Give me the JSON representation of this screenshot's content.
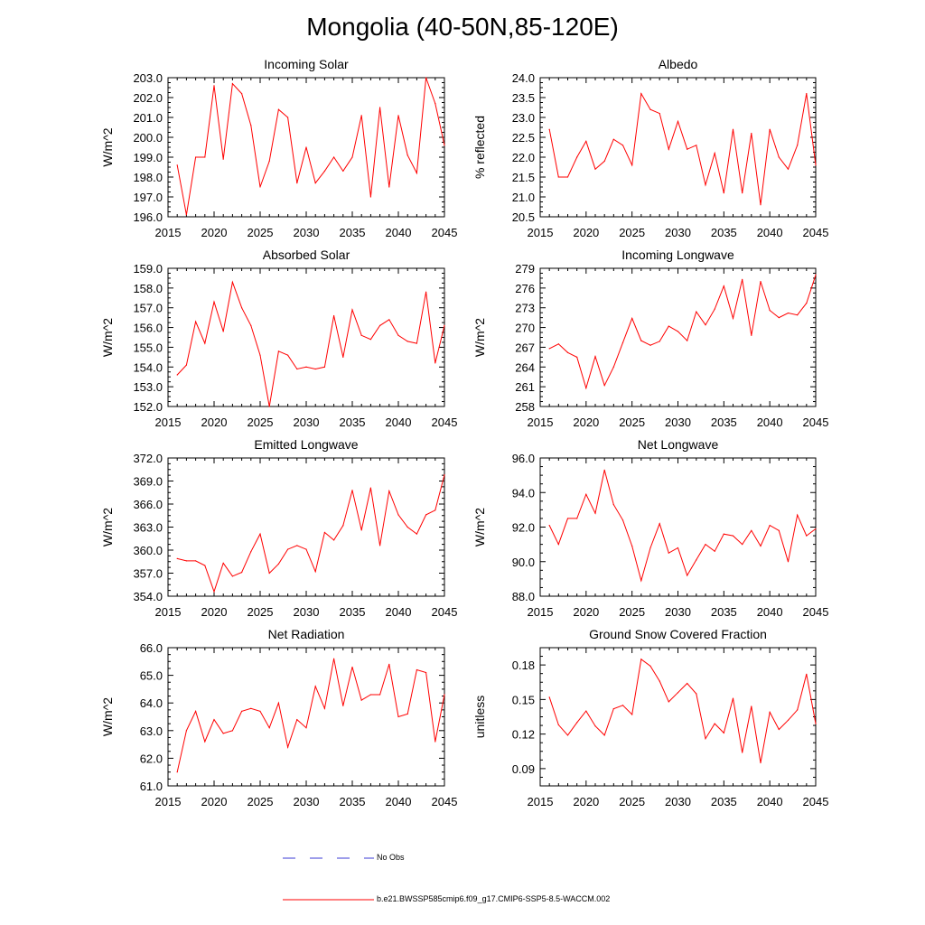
{
  "title": "Mongolia (40-50N,85-120E)",
  "legend": {
    "obs_label": "No Obs",
    "obs_color": "#3b3bd6",
    "model_label": "b.e21.BWSSP585cmip6.f09_g17.CMIP6-SSP5-8.5-WACCM.002",
    "model_color": "#ff0000"
  },
  "chart_data": [
    {
      "type": "line",
      "title": "Incoming Solar",
      "xlabel": "",
      "ylabel": "W/m^2",
      "xlim": [
        2015,
        2045
      ],
      "ylim": [
        196.0,
        203.0
      ],
      "xticks": [
        2015,
        2020,
        2025,
        2030,
        2035,
        2040,
        2045
      ],
      "yticks": [
        "196.0",
        "197.0",
        "198.0",
        "199.0",
        "200.0",
        "201.0",
        "202.0",
        "203.0"
      ],
      "x": [
        2016,
        2017,
        2018,
        2019,
        2020,
        2021,
        2022,
        2023,
        2024,
        2025,
        2026,
        2027,
        2028,
        2029,
        2030,
        2031,
        2032,
        2033,
        2034,
        2035,
        2036,
        2037,
        2038,
        2039,
        2040,
        2041,
        2042,
        2043,
        2044,
        2045
      ],
      "values": [
        198.6,
        196.1,
        199.0,
        199.0,
        202.6,
        198.9,
        202.7,
        202.2,
        200.6,
        197.5,
        198.8,
        201.4,
        201.0,
        197.7,
        199.5,
        197.7,
        198.3,
        199.0,
        198.3,
        199.0,
        201.1,
        197.0,
        201.5,
        197.5,
        201.1,
        199.1,
        198.2,
        203.0,
        201.7,
        199.6
      ]
    },
    {
      "type": "line",
      "title": "Albedo",
      "xlabel": "",
      "ylabel": "% reflected",
      "xlim": [
        2015,
        2045
      ],
      "ylim": [
        20.5,
        24.0
      ],
      "xticks": [
        2015,
        2020,
        2025,
        2030,
        2035,
        2040,
        2045
      ],
      "yticks": [
        "20.5",
        "21.0",
        "21.5",
        "22.0",
        "22.5",
        "23.0",
        "23.5",
        "24.0"
      ],
      "x": [
        2016,
        2017,
        2018,
        2019,
        2020,
        2021,
        2022,
        2023,
        2024,
        2025,
        2026,
        2027,
        2028,
        2029,
        2030,
        2031,
        2032,
        2033,
        2034,
        2035,
        2036,
        2037,
        2038,
        2039,
        2040,
        2041,
        2042,
        2043,
        2044,
        2045
      ],
      "values": [
        22.7,
        21.5,
        21.5,
        22.0,
        22.4,
        21.7,
        21.9,
        22.45,
        22.3,
        21.8,
        23.6,
        23.2,
        23.1,
        22.2,
        22.9,
        22.2,
        22.3,
        21.3,
        22.1,
        21.1,
        22.7,
        21.1,
        22.6,
        20.8,
        22.7,
        22.0,
        21.7,
        22.3,
        23.6,
        21.8
      ]
    },
    {
      "type": "line",
      "title": "Absorbed Solar",
      "xlabel": "",
      "ylabel": "W/m^2",
      "xlim": [
        2015,
        2045
      ],
      "ylim": [
        152.0,
        159.0
      ],
      "xticks": [
        2015,
        2020,
        2025,
        2030,
        2035,
        2040,
        2045
      ],
      "yticks": [
        "152.0",
        "153.0",
        "154.0",
        "155.0",
        "156.0",
        "157.0",
        "158.0",
        "159.0"
      ],
      "x": [
        2016,
        2017,
        2018,
        2019,
        2020,
        2021,
        2022,
        2023,
        2024,
        2025,
        2026,
        2027,
        2028,
        2029,
        2030,
        2031,
        2032,
        2033,
        2034,
        2035,
        2036,
        2037,
        2038,
        2039,
        2040,
        2041,
        2042,
        2043,
        2044,
        2045
      ],
      "values": [
        153.6,
        154.1,
        156.3,
        155.2,
        157.3,
        155.8,
        158.3,
        157.0,
        156.1,
        154.6,
        152.0,
        154.8,
        154.6,
        153.9,
        154.0,
        153.9,
        154.0,
        156.6,
        154.5,
        156.9,
        155.6,
        155.4,
        156.1,
        156.4,
        155.6,
        155.3,
        155.2,
        157.8,
        154.2,
        156.1
      ]
    },
    {
      "type": "line",
      "title": "Incoming Longwave",
      "xlabel": "",
      "ylabel": "W/m^2",
      "xlim": [
        2015,
        2045
      ],
      "ylim": [
        258,
        279
      ],
      "xticks": [
        2015,
        2020,
        2025,
        2030,
        2035,
        2040,
        2045
      ],
      "yticks": [
        "258",
        "261",
        "264",
        "267",
        "270",
        "273",
        "276",
        "279"
      ],
      "x": [
        2016,
        2017,
        2018,
        2019,
        2020,
        2021,
        2022,
        2023,
        2024,
        2025,
        2026,
        2027,
        2028,
        2029,
        2030,
        2031,
        2032,
        2033,
        2034,
        2035,
        2036,
        2037,
        2038,
        2039,
        2040,
        2041,
        2042,
        2043,
        2044,
        2045
      ],
      "values": [
        266.8,
        267.5,
        266.2,
        265.5,
        260.8,
        265.6,
        261.2,
        264.0,
        267.7,
        271.4,
        268.0,
        267.3,
        267.9,
        270.2,
        269.4,
        268.0,
        272.4,
        270.4,
        272.8,
        276.3,
        271.4,
        277.3,
        268.8,
        277.0,
        272.6,
        271.5,
        272.2,
        271.9,
        273.7,
        278.0
      ]
    },
    {
      "type": "line",
      "title": "Emitted Longwave",
      "xlabel": "",
      "ylabel": "W/m^2",
      "xlim": [
        2015,
        2045
      ],
      "ylim": [
        354.0,
        372.0
      ],
      "xticks": [
        2015,
        2020,
        2025,
        2030,
        2035,
        2040,
        2045
      ],
      "yticks": [
        "354.0",
        "357.0",
        "360.0",
        "363.0",
        "366.0",
        "369.0",
        "372.0"
      ],
      "x": [
        2016,
        2017,
        2018,
        2019,
        2020,
        2021,
        2022,
        2023,
        2024,
        2025,
        2026,
        2027,
        2028,
        2029,
        2030,
        2031,
        2032,
        2033,
        2034,
        2035,
        2036,
        2037,
        2038,
        2039,
        2040,
        2041,
        2042,
        2043,
        2044,
        2045
      ],
      "values": [
        358.9,
        358.6,
        358.6,
        358.0,
        354.6,
        358.3,
        356.6,
        357.1,
        359.8,
        362.1,
        357.0,
        358.2,
        360.1,
        360.6,
        360.1,
        357.2,
        362.3,
        361.3,
        363.2,
        367.8,
        362.6,
        368.1,
        360.6,
        367.7,
        364.6,
        363.0,
        362.1,
        364.6,
        365.2,
        369.8
      ]
    },
    {
      "type": "line",
      "title": "Net Longwave",
      "xlabel": "",
      "ylabel": "W/m^2",
      "xlim": [
        2015,
        2045
      ],
      "ylim": [
        88.0,
        96.0
      ],
      "xticks": [
        2015,
        2020,
        2025,
        2030,
        2035,
        2040,
        2045
      ],
      "yticks": [
        "88.0",
        "90.0",
        "92.0",
        "94.0",
        "96.0"
      ],
      "x": [
        2016,
        2017,
        2018,
        2019,
        2020,
        2021,
        2022,
        2023,
        2024,
        2025,
        2026,
        2027,
        2028,
        2029,
        2030,
        2031,
        2032,
        2033,
        2034,
        2035,
        2036,
        2037,
        2038,
        2039,
        2040,
        2041,
        2042,
        2043,
        2044,
        2045
      ],
      "values": [
        92.1,
        91.0,
        92.5,
        92.5,
        93.9,
        92.8,
        95.3,
        93.3,
        92.4,
        90.9,
        88.9,
        90.8,
        92.2,
        90.5,
        90.8,
        89.2,
        90.1,
        91.0,
        90.6,
        91.6,
        91.5,
        91.0,
        91.8,
        90.9,
        92.1,
        91.8,
        90.0,
        92.7,
        91.5,
        91.9
      ]
    },
    {
      "type": "line",
      "title": "Net Radiation",
      "xlabel": "",
      "ylabel": "W/m^2",
      "xlim": [
        2015,
        2045
      ],
      "ylim": [
        61.0,
        66.0
      ],
      "xticks": [
        2015,
        2020,
        2025,
        2030,
        2035,
        2040,
        2045
      ],
      "yticks": [
        "61.0",
        "62.0",
        "63.0",
        "64.0",
        "65.0",
        "66.0"
      ],
      "x": [
        2016,
        2017,
        2018,
        2019,
        2020,
        2021,
        2022,
        2023,
        2024,
        2025,
        2026,
        2027,
        2028,
        2029,
        2030,
        2031,
        2032,
        2033,
        2034,
        2035,
        2036,
        2037,
        2038,
        2039,
        2040,
        2041,
        2042,
        2043,
        2044,
        2045
      ],
      "values": [
        61.5,
        63.0,
        63.7,
        62.6,
        63.4,
        62.9,
        63.0,
        63.7,
        63.8,
        63.7,
        63.1,
        64.0,
        62.4,
        63.4,
        63.1,
        64.6,
        63.8,
        65.6,
        63.9,
        65.3,
        64.1,
        64.3,
        64.3,
        65.4,
        63.5,
        63.6,
        65.2,
        65.1,
        62.6,
        64.3
      ]
    },
    {
      "type": "line",
      "title": "Ground Snow Covered Fraction",
      "xlabel": "",
      "ylabel": "unitless",
      "xlim": [
        2015,
        2045
      ],
      "ylim": [
        0.075,
        0.195
      ],
      "xticks": [
        2015,
        2020,
        2025,
        2030,
        2035,
        2040,
        2045
      ],
      "yticks": [
        "0.09",
        "0.12",
        "0.15",
        "0.18"
      ],
      "x": [
        2016,
        2017,
        2018,
        2019,
        2020,
        2021,
        2022,
        2023,
        2024,
        2025,
        2026,
        2027,
        2028,
        2029,
        2030,
        2031,
        2032,
        2033,
        2034,
        2035,
        2036,
        2037,
        2038,
        2039,
        2040,
        2041,
        2042,
        2043,
        2044,
        2045
      ],
      "values": [
        0.152,
        0.128,
        0.119,
        0.13,
        0.14,
        0.127,
        0.119,
        0.142,
        0.145,
        0.137,
        0.185,
        0.179,
        0.166,
        0.148,
        0.156,
        0.164,
        0.155,
        0.116,
        0.129,
        0.121,
        0.151,
        0.104,
        0.144,
        0.095,
        0.139,
        0.124,
        0.132,
        0.141,
        0.172,
        0.129
      ]
    }
  ]
}
